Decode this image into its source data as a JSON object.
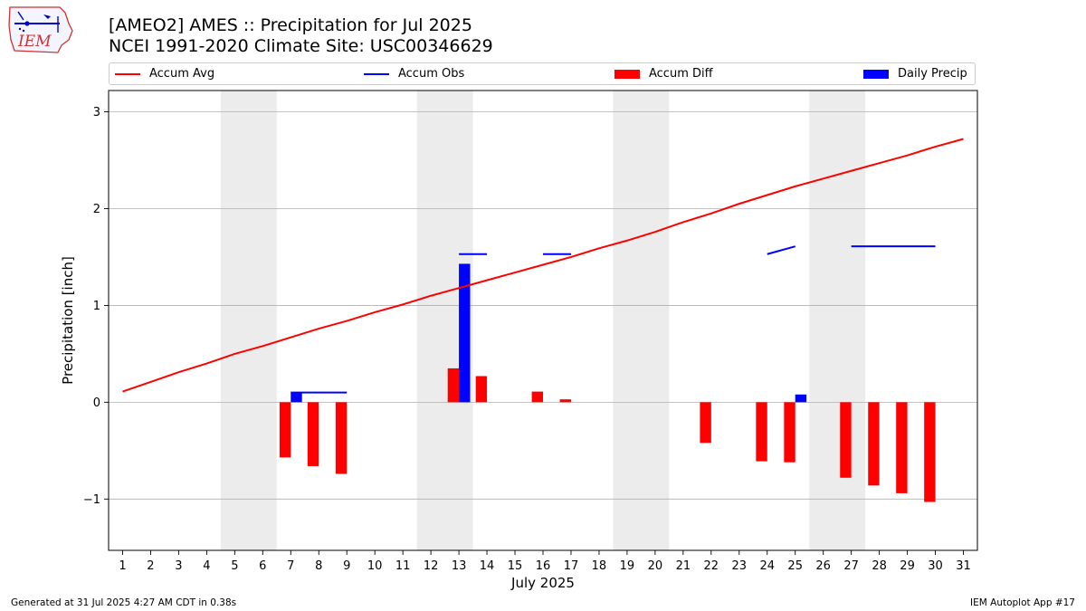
{
  "logo": {
    "text": "IEM"
  },
  "title_line1": "[AMEO2] AMES :: Precipitation for Jul 2025",
  "title_line2": "NCEI 1991-2020 Climate Site: USC00346629",
  "legend": [
    {
      "label": "Accum Avg",
      "kind": "line",
      "color": "#ff0000"
    },
    {
      "label": "Accum Obs",
      "kind": "line",
      "color": "#0000ff"
    },
    {
      "label": "Accum Diff",
      "kind": "rect",
      "color": "#ff0000"
    },
    {
      "label": "Daily Precip",
      "kind": "rect",
      "color": "#0000ff"
    }
  ],
  "footer_left": "Generated at 31 Jul 2025 4:27 AM CDT in 0.38s",
  "footer_right": "IEM Autoplot App #17",
  "chart_data": {
    "type": "bar",
    "xlabel": "July 2025",
    "ylabel": "Precipitation [inch]",
    "xlim": [
      0.5,
      31.5
    ],
    "ylim": [
      -1.53,
      3.22
    ],
    "yticks": [
      -1,
      0,
      1,
      2,
      3
    ],
    "ytick_labels": [
      "−1",
      "0",
      "1",
      "2",
      "3"
    ],
    "xticks": [
      1,
      2,
      3,
      4,
      5,
      6,
      7,
      8,
      9,
      10,
      11,
      12,
      13,
      14,
      15,
      16,
      17,
      18,
      19,
      20,
      21,
      22,
      23,
      24,
      25,
      26,
      27,
      28,
      29,
      30,
      31
    ],
    "weekends": [
      [
        4.5,
        6.5
      ],
      [
        11.5,
        13.5
      ],
      [
        18.5,
        20.5
      ],
      [
        25.5,
        27.5
      ]
    ],
    "grid": "horizontal",
    "series": [
      {
        "name": "Accum Avg",
        "type": "line",
        "color": "#ff0000",
        "x": [
          1,
          2,
          3,
          4,
          5,
          6,
          7,
          8,
          9,
          10,
          11,
          12,
          13,
          14,
          15,
          16,
          17,
          18,
          19,
          20,
          21,
          22,
          23,
          24,
          25,
          26,
          27,
          28,
          29,
          30,
          31
        ],
        "y": [
          0.11,
          0.21,
          0.31,
          0.4,
          0.5,
          0.58,
          0.67,
          0.76,
          0.84,
          0.93,
          1.01,
          1.1,
          1.18,
          1.26,
          1.34,
          1.42,
          1.5,
          1.59,
          1.67,
          1.76,
          1.86,
          1.95,
          2.05,
          2.14,
          2.23,
          2.31,
          2.39,
          2.47,
          2.55,
          2.64,
          2.72
        ]
      },
      {
        "name": "Accum Obs",
        "type": "line",
        "color": "#0000ff",
        "segments": [
          {
            "x": [
              7,
              8,
              9
            ],
            "y": [
              0.1,
              0.1,
              0.1
            ]
          },
          {
            "x": [
              13,
              14
            ],
            "y": [
              1.53,
              1.53
            ]
          },
          {
            "x": [
              16,
              17
            ],
            "y": [
              1.53,
              1.53
            ]
          },
          {
            "x": [
              24,
              25
            ],
            "y": [
              1.53,
              1.61
            ]
          },
          {
            "x": [
              27,
              28,
              29,
              30
            ],
            "y": [
              1.61,
              1.61,
              1.61,
              1.61
            ]
          }
        ]
      },
      {
        "name": "Accum Diff",
        "type": "bar",
        "color": "#ff0000",
        "x": [
          7,
          8,
          9,
          13,
          14,
          16,
          17,
          22,
          24,
          25,
          27,
          28,
          29,
          30
        ],
        "values": [
          -0.57,
          -0.66,
          -0.74,
          0.35,
          0.27,
          0.11,
          0.03,
          -0.42,
          -0.61,
          -0.62,
          -0.78,
          -0.86,
          -0.94,
          -1.03
        ]
      },
      {
        "name": "Daily Precip",
        "type": "bar",
        "color": "#0000ff",
        "x": [
          7,
          13,
          25
        ],
        "values": [
          0.1,
          1.43,
          0.08
        ]
      }
    ]
  }
}
